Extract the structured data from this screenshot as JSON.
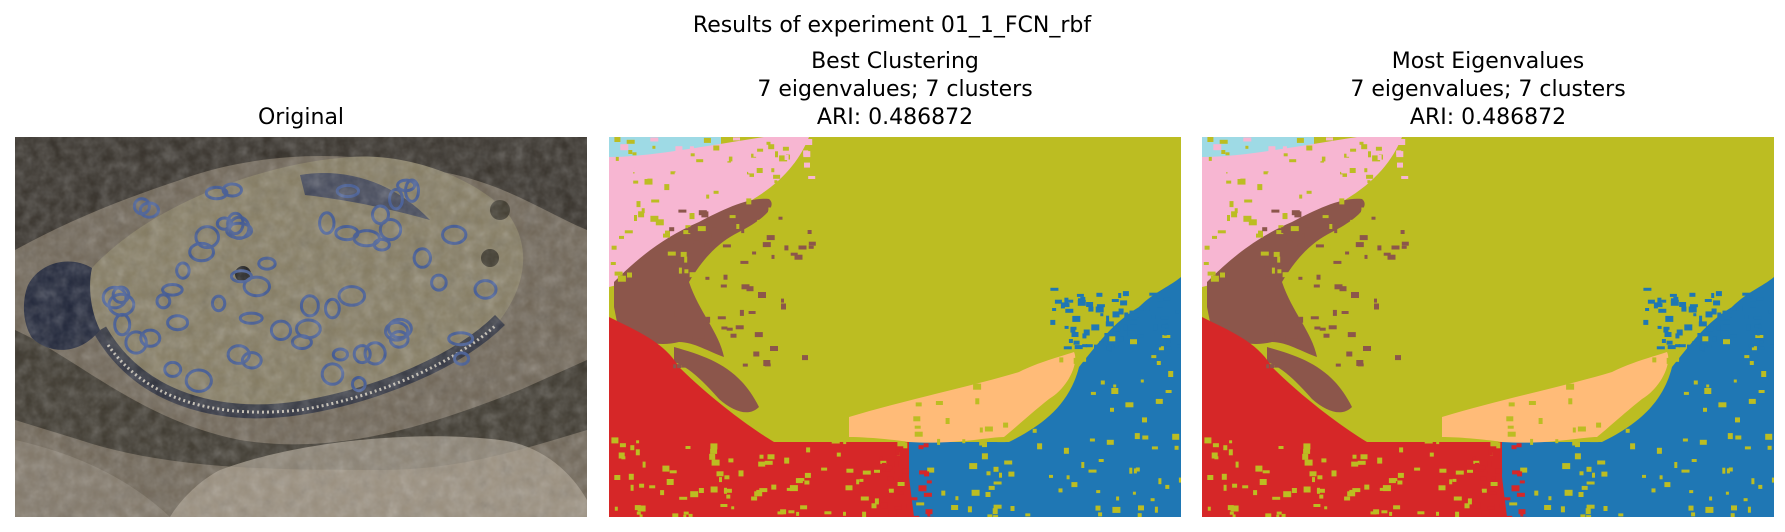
{
  "figure": {
    "suptitle": "Results of experiment 01_1_FCN_rbf"
  },
  "panels": [
    {
      "title_lines": [
        "Original"
      ],
      "kind": "photo"
    },
    {
      "title_lines": [
        "Best Clustering",
        "7 eigenvalues; 7 clusters",
        "ARI: 0.486872"
      ],
      "kind": "segmentation"
    },
    {
      "title_lines": [
        "Most Eigenvalues",
        "7 eigenvalues; 7 clusters",
        "ARI: 0.486872"
      ],
      "kind": "segmentation"
    }
  ],
  "segmentation_colors": {
    "light-blue": "#9edae5",
    "pink": "#f7b6d2",
    "olive": "#bcbd22",
    "brown": "#8c564b",
    "red": "#d62728",
    "orange": "#ffbb78",
    "blue": "#1f77b4"
  },
  "photo_colors": {
    "sand": "#6f6556",
    "rock_dark": "#2a2620",
    "fish_body": "#857c62",
    "fish_dark": "#1c2236",
    "spots": "#3f5792",
    "fin": "#3a4058"
  }
}
